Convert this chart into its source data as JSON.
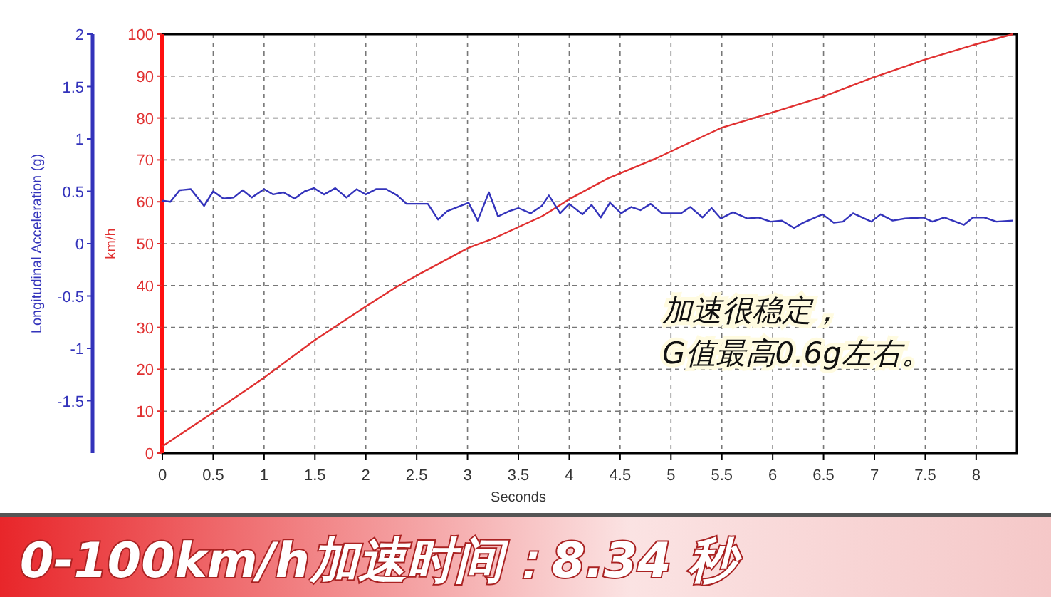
{
  "chart_data": {
    "type": "line",
    "title": "0-100km/h加速时间：8.34 秒",
    "xlabel": "Seconds",
    "ylabel": "km/h",
    "y2label": "Longitudinal Acceleration (g)",
    "xlim": [
      0,
      8.4
    ],
    "xticks": [
      0,
      0.5,
      1,
      1.5,
      2,
      2.5,
      3,
      3.5,
      4,
      4.5,
      5,
      5.5,
      6,
      6.5,
      7,
      7.5,
      8
    ],
    "ylim": [
      0,
      100
    ],
    "yticks": [
      0,
      10,
      20,
      30,
      40,
      50,
      60,
      70,
      80,
      90,
      100
    ],
    "y2lim": [
      -2,
      2
    ],
    "y2ticks": [
      -1.5,
      -1,
      -0.5,
      0,
      0.5,
      1,
      1.5,
      2
    ],
    "grid": true,
    "marker": "none",
    "line_style": "solid",
    "annotations": [
      "加速很稳定，\nG值最高0.6g左右。"
    ],
    "series": [
      {
        "color": "#e03030",
        "x": [
          0,
          0.5,
          1.0,
          1.5,
          2.0,
          2.29,
          2.5,
          3.01,
          3.27,
          3.73,
          4.0,
          4.38,
          4.84,
          5.49,
          5.98,
          6.49,
          6.97,
          7.48,
          7.97,
          8.36
        ],
        "values": [
          1.6,
          9.7,
          18,
          27,
          35,
          39.5,
          42.4,
          49,
          51.4,
          56.5,
          60.6,
          65.6,
          70.2,
          77.6,
          81.2,
          85,
          89.5,
          93.8,
          97.4,
          100
        ]
      },
      {
        "color": "#3333bb",
        "axis": "y2",
        "x": [
          0,
          0.08,
          0.17,
          0.28,
          0.41,
          0.5,
          0.6,
          0.7,
          0.79,
          0.88,
          1.0,
          1.09,
          1.19,
          1.3,
          1.4,
          1.49,
          1.59,
          1.7,
          1.81,
          1.91,
          2.0,
          2.1,
          2.2,
          2.31,
          2.4,
          2.61,
          2.71,
          2.8,
          3.01,
          3.1,
          3.21,
          3.3,
          3.41,
          3.5,
          3.62,
          3.73,
          3.8,
          3.91,
          4.0,
          4.13,
          4.22,
          4.31,
          4.4,
          4.51,
          4.61,
          4.7,
          4.8,
          4.91,
          5.1,
          5.19,
          5.31,
          5.4,
          5.49,
          5.61,
          5.75,
          5.86,
          5.98,
          6.09,
          6.21,
          6.3,
          6.49,
          6.6,
          6.69,
          6.79,
          6.97,
          7.06,
          7.18,
          7.3,
          7.48,
          7.57,
          7.69,
          7.88,
          7.97,
          8.08,
          8.2,
          8.36
        ],
        "values": [
          0.41,
          0.4,
          0.51,
          0.52,
          0.36,
          0.5,
          0.43,
          0.44,
          0.51,
          0.44,
          0.52,
          0.47,
          0.49,
          0.43,
          0.5,
          0.53,
          0.47,
          0.53,
          0.44,
          0.52,
          0.47,
          0.52,
          0.52,
          0.46,
          0.38,
          0.38,
          0.23,
          0.31,
          0.39,
          0.22,
          0.49,
          0.26,
          0.31,
          0.34,
          0.29,
          0.36,
          0.46,
          0.29,
          0.38,
          0.28,
          0.37,
          0.25,
          0.39,
          0.29,
          0.35,
          0.32,
          0.38,
          0.29,
          0.29,
          0.35,
          0.25,
          0.34,
          0.24,
          0.3,
          0.24,
          0.25,
          0.21,
          0.22,
          0.15,
          0.2,
          0.28,
          0.2,
          0.21,
          0.29,
          0.21,
          0.28,
          0.22,
          0.24,
          0.25,
          0.21,
          0.25,
          0.18,
          0.25,
          0.25,
          0.21,
          0.22
        ]
      }
    ]
  }
}
